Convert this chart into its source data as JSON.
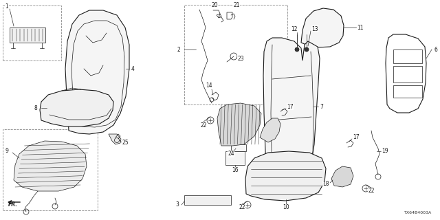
{
  "bg_color": "#ffffff",
  "line_color": "#1a1a1a",
  "diagram_id": "TX64B4003A",
  "fig_w": 6.4,
  "fig_h": 3.2,
  "dpi": 100
}
